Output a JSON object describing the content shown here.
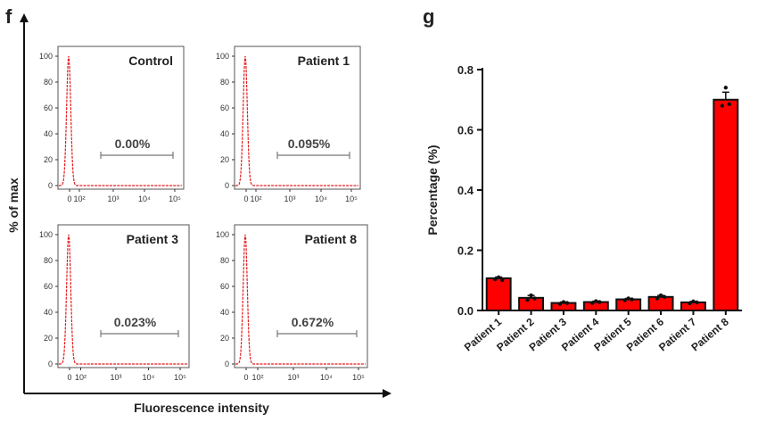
{
  "panels": {
    "f": {
      "letter": "f",
      "ylabel": "% of max",
      "xlabel": "Fluorescence intensity",
      "y_ticks": [
        "100",
        "80",
        "60",
        "40",
        "20",
        "0"
      ],
      "x_ticks": [
        "0",
        "10²",
        "10³",
        "10⁴",
        "10⁵"
      ]
    },
    "g": {
      "letter": "g"
    }
  },
  "chart_data": [
    {
      "type": "line",
      "title": "Control",
      "gate_label": "0.00%",
      "gate_percent": 0.0,
      "xlabel": "Fluorescence intensity",
      "ylabel": "% of max",
      "ylim": [
        0,
        100
      ]
    },
    {
      "type": "line",
      "title": "Patient 1",
      "gate_label": "0.095%",
      "gate_percent": 0.095,
      "xlabel": "Fluorescence intensity",
      "ylabel": "% of max",
      "ylim": [
        0,
        100
      ]
    },
    {
      "type": "line",
      "title": "Patient 3",
      "gate_label": "0.023%",
      "gate_percent": 0.023,
      "xlabel": "Fluorescence intensity",
      "ylabel": "% of max",
      "ylim": [
        0,
        100
      ]
    },
    {
      "type": "line",
      "title": "Patient 8",
      "gate_label": "0.672%",
      "gate_percent": 0.672,
      "xlabel": "Fluorescence intensity",
      "ylabel": "% of max",
      "ylim": [
        0,
        100
      ]
    },
    {
      "type": "bar",
      "categories": [
        "Patient 1",
        "Patient 2",
        "Patient 3",
        "Patient 4",
        "Patient 5",
        "Patient 6",
        "Patient 7",
        "Patient 8"
      ],
      "values": [
        0.107,
        0.042,
        0.025,
        0.028,
        0.037,
        0.045,
        0.027,
        0.7
      ],
      "errors": [
        0.004,
        0.008,
        0.003,
        0.003,
        0.003,
        0.005,
        0.003,
        0.025
      ],
      "points": [
        [
          0.104,
          0.11,
          0.101
        ],
        [
          0.035,
          0.05,
          0.04
        ],
        [
          0.022,
          0.028,
          0.025
        ],
        [
          0.025,
          0.031,
          0.028
        ],
        [
          0.034,
          0.04,
          0.037
        ],
        [
          0.04,
          0.05,
          0.045
        ],
        [
          0.024,
          0.03,
          0.027
        ],
        [
          0.68,
          0.74,
          0.685
        ]
      ],
      "ylabel": "Percentage (%)",
      "ylim": [
        0,
        0.8
      ],
      "yticks": [
        "0.0",
        "0.2",
        "0.4",
        "0.6",
        "0.8"
      ],
      "bar_color": "#ff0000"
    }
  ]
}
